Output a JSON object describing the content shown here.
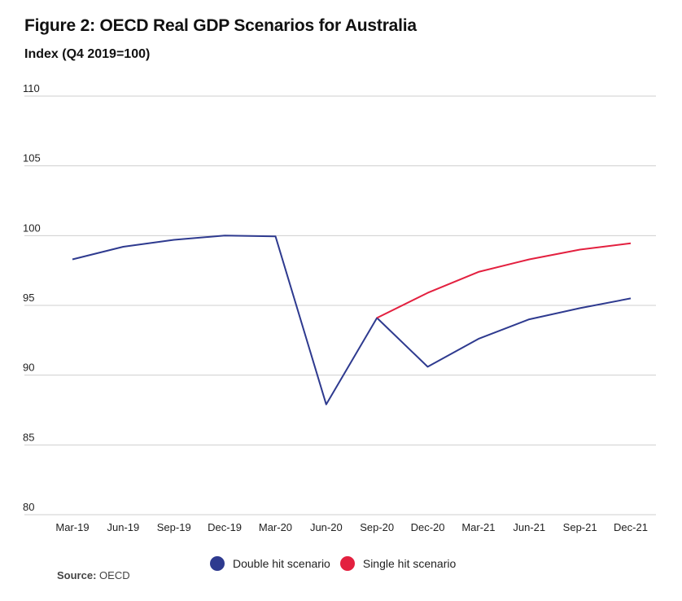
{
  "chart_data": {
    "type": "line",
    "title": "Figure 2: OECD Real GDP Scenarios for Australia",
    "subtitle": "Index (Q4 2019=100)",
    "categories": [
      "Mar-19",
      "Jun-19",
      "Sep-19",
      "Dec-19",
      "Mar-20",
      "Jun-20",
      "Sep-20",
      "Dec-20",
      "Mar-21",
      "Jun-21",
      "Sep-21",
      "Dec-21"
    ],
    "yticks": [
      "110",
      "105",
      "100",
      "95",
      "90",
      "85",
      "80"
    ],
    "ylim": [
      80,
      110
    ],
    "series": [
      {
        "name": "Double hit scenario",
        "color": "#2e3a8f",
        "values": [
          98.3,
          99.2,
          99.7,
          100.0,
          99.95,
          87.9,
          94.1,
          90.6,
          92.6,
          94.0,
          94.8,
          95.5
        ]
      },
      {
        "name": "Single hit scenario",
        "color": "#e3203f",
        "values": [
          null,
          null,
          null,
          null,
          null,
          null,
          94.1,
          95.9,
          97.4,
          98.3,
          99.0,
          99.45
        ]
      }
    ],
    "grid": true
  },
  "source": {
    "label": "Source:",
    "text": "OECD"
  }
}
